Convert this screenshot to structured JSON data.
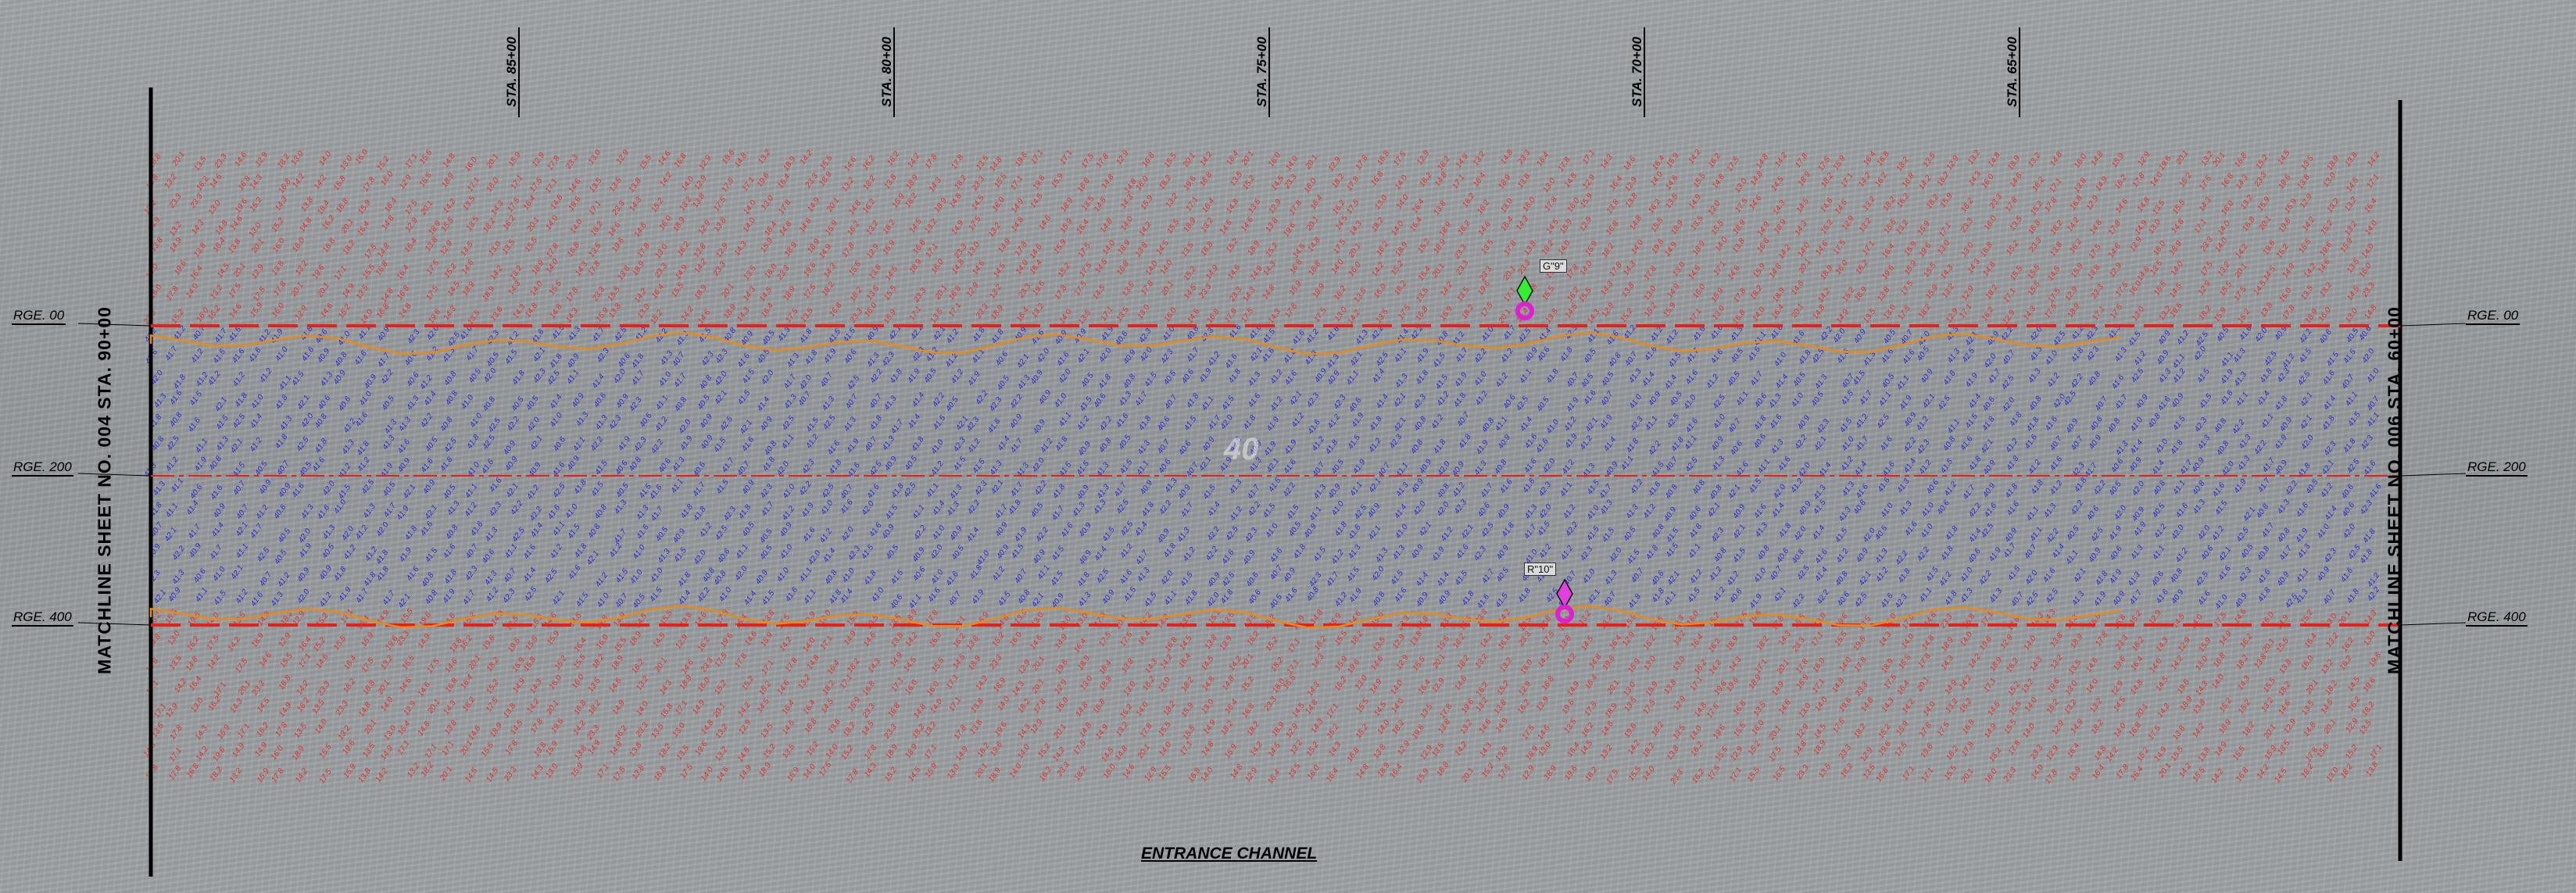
{
  "matchlines": {
    "left": "MATCHLINE SHEET NO. 004  STA. 90+00",
    "right": "MATCHLINE SHEET NO. 006  STA. 60+00"
  },
  "range_lines": [
    {
      "label": "RGE. 00"
    },
    {
      "label": "RGE. 200"
    },
    {
      "label": "RGE. 400"
    }
  ],
  "stations": [
    "STA. 85+00",
    "STA. 80+00",
    "STA. 75+00",
    "STA. 70+00",
    "STA. 65+00"
  ],
  "channel_title": "ENTRANCE CHANNEL",
  "channel_depth_label": "40",
  "buoys": [
    {
      "label": "G\"9\"",
      "color": "#33ee33",
      "icon": "green-buoy-icon"
    },
    {
      "label": "R\"10\"",
      "color": "#e040e0",
      "icon": "red-buoy-icon"
    }
  ],
  "colors": {
    "outside_soundings": "#e0302a",
    "channel_soundings": "#2a2ad0",
    "channel_limit": "#e8201a",
    "toe_of_slope": "#e88a1a",
    "buoy_marker": "#e020d0"
  },
  "soundings": {
    "outside_values": [
      "19.6",
      "18.2",
      "17.5",
      "16.8",
      "16.0",
      "15.5",
      "15.2",
      "14.8",
      "14.6",
      "14.5",
      "14.3",
      "14.2",
      "14.0",
      "13.8",
      "13.5",
      "13.2",
      "13.0",
      "12.9",
      "17.8",
      "16.4",
      "15.9",
      "14.9",
      "16.2",
      "17.1",
      "18.9",
      "20.1",
      "23.3"
    ],
    "channel_values": [
      "41.2",
      "40.9",
      "41.5",
      "41.8",
      "42.0",
      "40.7",
      "41.3",
      "41.6",
      "41.9",
      "40.8",
      "41.1",
      "42.1",
      "41.4",
      "41.7",
      "40.6",
      "41.0",
      "42.3",
      "41.5",
      "40.5",
      "41.8",
      "42.5",
      "41.6",
      "40.9",
      "41.2",
      "42.2",
      "41.3"
    ]
  }
}
